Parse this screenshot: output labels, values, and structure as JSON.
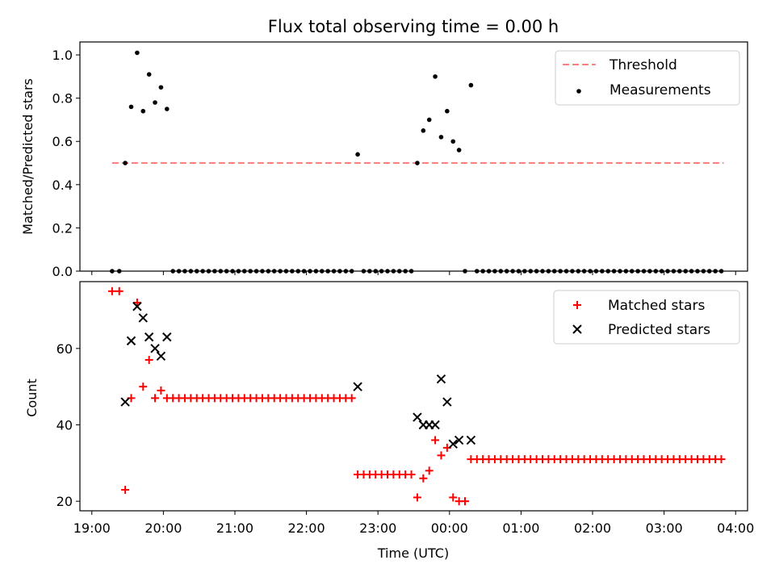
{
  "title": "Flux total observing time = 0.00 h",
  "chart_data": [
    {
      "type": "scatter",
      "ylabel": "Matched/Predicted stars",
      "ylim": [
        0,
        1.06
      ],
      "yticks": [
        0.0,
        0.2,
        0.4,
        0.6,
        0.8,
        1.0
      ],
      "ytick_labels": [
        "0.0",
        "0.2",
        "0.4",
        "0.6",
        "0.8",
        "1.0"
      ],
      "legend_position": "top-right",
      "threshold": {
        "name": "Threshold",
        "y": 0.5,
        "x_start": "19:17",
        "x_end": "03:50",
        "color": "#ff7f7f"
      },
      "measurements_color": "#000000",
      "measurements": [
        {
          "x": "19:17",
          "y": 0.0
        },
        {
          "x": "19:23",
          "y": 0.0
        },
        {
          "x": "19:28",
          "y": 0.5
        },
        {
          "x": "19:33",
          "y": 0.76
        },
        {
          "x": "19:38",
          "y": 1.01
        },
        {
          "x": "19:43",
          "y": 0.74
        },
        {
          "x": "19:48",
          "y": 0.91
        },
        {
          "x": "19:53",
          "y": 0.78
        },
        {
          "x": "19:58",
          "y": 0.85
        },
        {
          "x": "20:03",
          "y": 0.75
        },
        {
          "x": "20:08",
          "y": 0.0
        },
        {
          "x": "20:13",
          "y": 0.0
        },
        {
          "x": "20:18",
          "y": 0.0
        },
        {
          "x": "20:23",
          "y": 0.0
        },
        {
          "x": "20:28",
          "y": 0.0
        },
        {
          "x": "20:33",
          "y": 0.0
        },
        {
          "x": "20:38",
          "y": 0.0
        },
        {
          "x": "20:43",
          "y": 0.0
        },
        {
          "x": "20:48",
          "y": 0.0
        },
        {
          "x": "20:53",
          "y": 0.0
        },
        {
          "x": "20:58",
          "y": 0.0
        },
        {
          "x": "21:03",
          "y": 0.0
        },
        {
          "x": "21:08",
          "y": 0.0
        },
        {
          "x": "21:13",
          "y": 0.0
        },
        {
          "x": "21:18",
          "y": 0.0
        },
        {
          "x": "21:23",
          "y": 0.0
        },
        {
          "x": "21:28",
          "y": 0.0
        },
        {
          "x": "21:33",
          "y": 0.0
        },
        {
          "x": "21:38",
          "y": 0.0
        },
        {
          "x": "21:43",
          "y": 0.0
        },
        {
          "x": "21:48",
          "y": 0.0
        },
        {
          "x": "21:53",
          "y": 0.0
        },
        {
          "x": "21:58",
          "y": 0.0
        },
        {
          "x": "22:03",
          "y": 0.0
        },
        {
          "x": "22:08",
          "y": 0.0
        },
        {
          "x": "22:13",
          "y": 0.0
        },
        {
          "x": "22:18",
          "y": 0.0
        },
        {
          "x": "22:23",
          "y": 0.0
        },
        {
          "x": "22:28",
          "y": 0.0
        },
        {
          "x": "22:33",
          "y": 0.0
        },
        {
          "x": "22:38",
          "y": 0.0
        },
        {
          "x": "22:43",
          "y": 0.54
        },
        {
          "x": "22:48",
          "y": 0.0
        },
        {
          "x": "22:53",
          "y": 0.0
        },
        {
          "x": "22:58",
          "y": 0.0
        },
        {
          "x": "23:03",
          "y": 0.0
        },
        {
          "x": "23:08",
          "y": 0.0
        },
        {
          "x": "23:13",
          "y": 0.0
        },
        {
          "x": "23:18",
          "y": 0.0
        },
        {
          "x": "23:23",
          "y": 0.0
        },
        {
          "x": "23:28",
          "y": 0.0
        },
        {
          "x": "23:33",
          "y": 0.5
        },
        {
          "x": "23:38",
          "y": 0.65
        },
        {
          "x": "23:43",
          "y": 0.7
        },
        {
          "x": "23:48",
          "y": 0.9
        },
        {
          "x": "23:53",
          "y": 0.62
        },
        {
          "x": "23:58",
          "y": 0.74
        },
        {
          "x": "00:03",
          "y": 0.6
        },
        {
          "x": "00:08",
          "y": 0.56
        },
        {
          "x": "00:13",
          "y": 0.0
        },
        {
          "x": "00:18",
          "y": 0.86
        },
        {
          "x": "00:23",
          "y": 0.0
        },
        {
          "x": "00:28",
          "y": 0.0
        },
        {
          "x": "00:33",
          "y": 0.0
        },
        {
          "x": "00:38",
          "y": 0.0
        },
        {
          "x": "00:43",
          "y": 0.0
        },
        {
          "x": "00:48",
          "y": 0.0
        },
        {
          "x": "00:53",
          "y": 0.0
        },
        {
          "x": "00:58",
          "y": 0.0
        },
        {
          "x": "01:03",
          "y": 0.0
        },
        {
          "x": "01:08",
          "y": 0.0
        },
        {
          "x": "01:13",
          "y": 0.0
        },
        {
          "x": "01:18",
          "y": 0.0
        },
        {
          "x": "01:23",
          "y": 0.0
        },
        {
          "x": "01:28",
          "y": 0.0
        },
        {
          "x": "01:33",
          "y": 0.0
        },
        {
          "x": "01:38",
          "y": 0.0
        },
        {
          "x": "01:43",
          "y": 0.0
        },
        {
          "x": "01:48",
          "y": 0.0
        },
        {
          "x": "01:53",
          "y": 0.0
        },
        {
          "x": "01:58",
          "y": 0.0
        },
        {
          "x": "02:03",
          "y": 0.0
        },
        {
          "x": "02:08",
          "y": 0.0
        },
        {
          "x": "02:13",
          "y": 0.0
        },
        {
          "x": "02:18",
          "y": 0.0
        },
        {
          "x": "02:23",
          "y": 0.0
        },
        {
          "x": "02:28",
          "y": 0.0
        },
        {
          "x": "02:33",
          "y": 0.0
        },
        {
          "x": "02:38",
          "y": 0.0
        },
        {
          "x": "02:43",
          "y": 0.0
        },
        {
          "x": "02:48",
          "y": 0.0
        },
        {
          "x": "02:53",
          "y": 0.0
        },
        {
          "x": "02:58",
          "y": 0.0
        },
        {
          "x": "03:03",
          "y": 0.0
        },
        {
          "x": "03:08",
          "y": 0.0
        },
        {
          "x": "03:13",
          "y": 0.0
        },
        {
          "x": "03:18",
          "y": 0.0
        },
        {
          "x": "03:23",
          "y": 0.0
        },
        {
          "x": "03:28",
          "y": 0.0
        },
        {
          "x": "03:33",
          "y": 0.0
        },
        {
          "x": "03:38",
          "y": 0.0
        },
        {
          "x": "03:43",
          "y": 0.0
        },
        {
          "x": "03:48",
          "y": 0.0
        }
      ],
      "legend": [
        "Threshold",
        "Measurements"
      ]
    },
    {
      "type": "scatter",
      "xlabel": "Time (UTC)",
      "ylabel": "Count",
      "ylim": [
        17.5,
        77.5
      ],
      "yticks": [
        20,
        40,
        60
      ],
      "ytick_labels": [
        "20",
        "40",
        "60"
      ],
      "xlim": [
        "18:50",
        "04:10"
      ],
      "xticks": [
        "19:00",
        "20:00",
        "21:00",
        "22:00",
        "23:00",
        "00:00",
        "01:00",
        "02:00",
        "03:00",
        "04:00"
      ],
      "legend_position": "top-right",
      "series": [
        {
          "name": "Matched stars",
          "marker": "plus",
          "color": "#ff0000",
          "points": [
            {
              "x": "19:17",
              "y": 75
            },
            {
              "x": "19:23",
              "y": 75
            },
            {
              "x": "19:28",
              "y": 23
            },
            {
              "x": "19:33",
              "y": 47
            },
            {
              "x": "19:38",
              "y": 72
            },
            {
              "x": "19:43",
              "y": 50
            },
            {
              "x": "19:48",
              "y": 57
            },
            {
              "x": "19:53",
              "y": 47
            },
            {
              "x": "19:58",
              "y": 49
            },
            {
              "x": "20:03",
              "y": 47
            },
            {
              "x": "20:08",
              "y": 47
            },
            {
              "x": "20:13",
              "y": 47
            },
            {
              "x": "20:18",
              "y": 47
            },
            {
              "x": "20:23",
              "y": 47
            },
            {
              "x": "20:28",
              "y": 47
            },
            {
              "x": "20:33",
              "y": 47
            },
            {
              "x": "20:38",
              "y": 47
            },
            {
              "x": "20:43",
              "y": 47
            },
            {
              "x": "20:48",
              "y": 47
            },
            {
              "x": "20:53",
              "y": 47
            },
            {
              "x": "20:58",
              "y": 47
            },
            {
              "x": "21:03",
              "y": 47
            },
            {
              "x": "21:08",
              "y": 47
            },
            {
              "x": "21:13",
              "y": 47
            },
            {
              "x": "21:18",
              "y": 47
            },
            {
              "x": "21:23",
              "y": 47
            },
            {
              "x": "21:28",
              "y": 47
            },
            {
              "x": "21:33",
              "y": 47
            },
            {
              "x": "21:38",
              "y": 47
            },
            {
              "x": "21:43",
              "y": 47
            },
            {
              "x": "21:48",
              "y": 47
            },
            {
              "x": "21:53",
              "y": 47
            },
            {
              "x": "21:58",
              "y": 47
            },
            {
              "x": "22:03",
              "y": 47
            },
            {
              "x": "22:08",
              "y": 47
            },
            {
              "x": "22:13",
              "y": 47
            },
            {
              "x": "22:18",
              "y": 47
            },
            {
              "x": "22:23",
              "y": 47
            },
            {
              "x": "22:28",
              "y": 47
            },
            {
              "x": "22:33",
              "y": 47
            },
            {
              "x": "22:38",
              "y": 47
            },
            {
              "x": "22:43",
              "y": 27
            },
            {
              "x": "22:48",
              "y": 27
            },
            {
              "x": "22:53",
              "y": 27
            },
            {
              "x": "22:58",
              "y": 27
            },
            {
              "x": "23:03",
              "y": 27
            },
            {
              "x": "23:08",
              "y": 27
            },
            {
              "x": "23:13",
              "y": 27
            },
            {
              "x": "23:18",
              "y": 27
            },
            {
              "x": "23:23",
              "y": 27
            },
            {
              "x": "23:28",
              "y": 27
            },
            {
              "x": "23:33",
              "y": 21
            },
            {
              "x": "23:38",
              "y": 26
            },
            {
              "x": "23:43",
              "y": 28
            },
            {
              "x": "23:48",
              "y": 36
            },
            {
              "x": "23:53",
              "y": 32
            },
            {
              "x": "23:58",
              "y": 34
            },
            {
              "x": "00:03",
              "y": 21
            },
            {
              "x": "00:08",
              "y": 20
            },
            {
              "x": "00:13",
              "y": 20
            },
            {
              "x": "00:18",
              "y": 31
            },
            {
              "x": "00:23",
              "y": 31
            },
            {
              "x": "00:28",
              "y": 31
            },
            {
              "x": "00:33",
              "y": 31
            },
            {
              "x": "00:38",
              "y": 31
            },
            {
              "x": "00:43",
              "y": 31
            },
            {
              "x": "00:48",
              "y": 31
            },
            {
              "x": "00:53",
              "y": 31
            },
            {
              "x": "00:58",
              "y": 31
            },
            {
              "x": "01:03",
              "y": 31
            },
            {
              "x": "01:08",
              "y": 31
            },
            {
              "x": "01:13",
              "y": 31
            },
            {
              "x": "01:18",
              "y": 31
            },
            {
              "x": "01:23",
              "y": 31
            },
            {
              "x": "01:28",
              "y": 31
            },
            {
              "x": "01:33",
              "y": 31
            },
            {
              "x": "01:38",
              "y": 31
            },
            {
              "x": "01:43",
              "y": 31
            },
            {
              "x": "01:48",
              "y": 31
            },
            {
              "x": "01:53",
              "y": 31
            },
            {
              "x": "01:58",
              "y": 31
            },
            {
              "x": "02:03",
              "y": 31
            },
            {
              "x": "02:08",
              "y": 31
            },
            {
              "x": "02:13",
              "y": 31
            },
            {
              "x": "02:18",
              "y": 31
            },
            {
              "x": "02:23",
              "y": 31
            },
            {
              "x": "02:28",
              "y": 31
            },
            {
              "x": "02:33",
              "y": 31
            },
            {
              "x": "02:38",
              "y": 31
            },
            {
              "x": "02:43",
              "y": 31
            },
            {
              "x": "02:48",
              "y": 31
            },
            {
              "x": "02:53",
              "y": 31
            },
            {
              "x": "02:58",
              "y": 31
            },
            {
              "x": "03:03",
              "y": 31
            },
            {
              "x": "03:08",
              "y": 31
            },
            {
              "x": "03:13",
              "y": 31
            },
            {
              "x": "03:18",
              "y": 31
            },
            {
              "x": "03:23",
              "y": 31
            },
            {
              "x": "03:28",
              "y": 31
            },
            {
              "x": "03:33",
              "y": 31
            },
            {
              "x": "03:38",
              "y": 31
            },
            {
              "x": "03:43",
              "y": 31
            },
            {
              "x": "03:48",
              "y": 31
            }
          ]
        },
        {
          "name": "Predicted stars",
          "marker": "x",
          "color": "#000000",
          "points": [
            {
              "x": "19:28",
              "y": 46
            },
            {
              "x": "19:33",
              "y": 62
            },
            {
              "x": "19:38",
              "y": 71
            },
            {
              "x": "19:43",
              "y": 68
            },
            {
              "x": "19:48",
              "y": 63
            },
            {
              "x": "19:53",
              "y": 60
            },
            {
              "x": "19:58",
              "y": 58
            },
            {
              "x": "20:03",
              "y": 63
            },
            {
              "x": "22:43",
              "y": 50
            },
            {
              "x": "23:33",
              "y": 42
            },
            {
              "x": "23:38",
              "y": 40
            },
            {
              "x": "23:43",
              "y": 40
            },
            {
              "x": "23:48",
              "y": 40
            },
            {
              "x": "23:53",
              "y": 52
            },
            {
              "x": "23:58",
              "y": 46
            },
            {
              "x": "00:03",
              "y": 35
            },
            {
              "x": "00:08",
              "y": 36
            },
            {
              "x": "00:18",
              "y": 36
            }
          ]
        }
      ],
      "legend": [
        "Matched stars",
        "Predicted stars"
      ]
    }
  ]
}
